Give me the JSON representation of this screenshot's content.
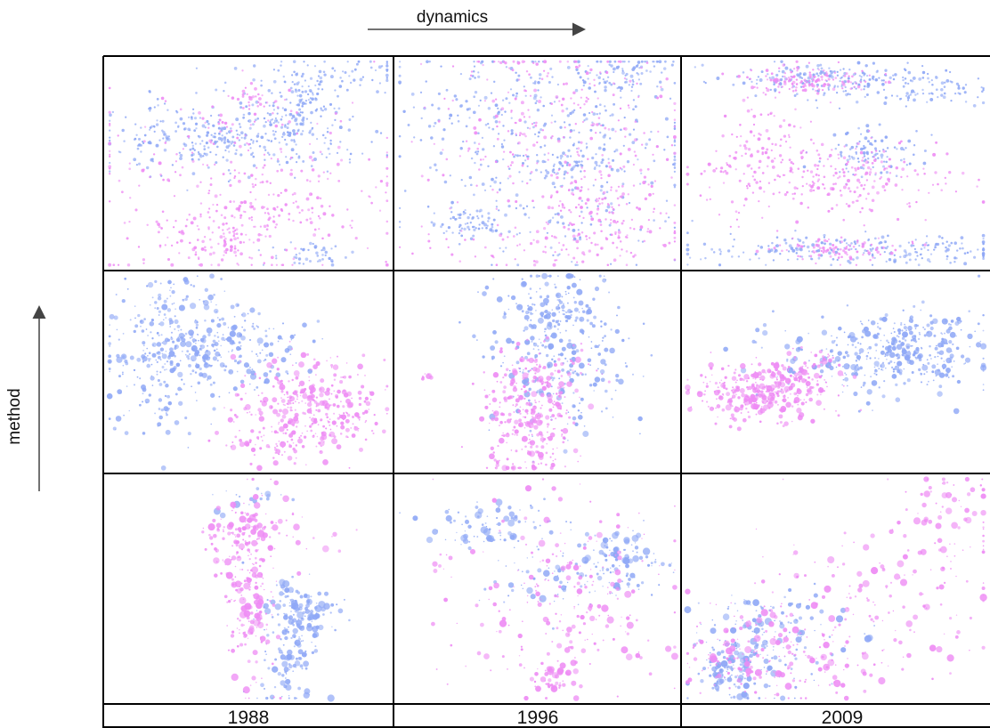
{
  "chart_data": {
    "type": "scatter",
    "title": "",
    "x_axis_label": "dynamics",
    "y_axis_label": "method",
    "columns": [
      "1988",
      "1996",
      "2009"
    ],
    "grid": "3x3 small multiples",
    "series_colors": {
      "blue": "#8fa8f6",
      "pink": "#ee8cf4"
    },
    "panels": [
      {
        "row": 1,
        "column": "1988",
        "clusters": [
          {
            "color": "blue",
            "cx": 0.42,
            "cy": 0.63,
            "sx": 0.22,
            "sy": 0.08,
            "n": 360
          },
          {
            "color": "blue",
            "cx": 0.68,
            "cy": 0.78,
            "sx": 0.06,
            "sy": 0.06,
            "n": 80
          },
          {
            "color": "blue",
            "cx": 0.75,
            "cy": 0.92,
            "sx": 0.18,
            "sy": 0.05,
            "n": 90
          },
          {
            "color": "blue",
            "cx": 0.72,
            "cy": 0.06,
            "sx": 0.07,
            "sy": 0.04,
            "n": 45
          },
          {
            "color": "pink",
            "cx": 0.5,
            "cy": 0.4,
            "sx": 0.28,
            "sy": 0.22,
            "n": 280
          },
          {
            "color": "pink",
            "cx": 0.35,
            "cy": 0.12,
            "sx": 0.12,
            "sy": 0.06,
            "n": 80
          },
          {
            "color": "pink",
            "cx": 0.58,
            "cy": 0.23,
            "sx": 0.12,
            "sy": 0.05,
            "n": 60
          },
          {
            "color": "pink",
            "cx": 0.52,
            "cy": 0.82,
            "sx": 0.05,
            "sy": 0.03,
            "n": 30
          }
        ]
      },
      {
        "row": 1,
        "column": "1996",
        "clusters": [
          {
            "color": "blue",
            "cx": 0.62,
            "cy": 0.55,
            "sx": 0.25,
            "sy": 0.28,
            "n": 320
          },
          {
            "color": "blue",
            "cx": 0.25,
            "cy": 0.22,
            "sx": 0.08,
            "sy": 0.04,
            "n": 70
          },
          {
            "color": "blue",
            "cx": 0.62,
            "cy": 0.5,
            "sx": 0.08,
            "sy": 0.03,
            "n": 60
          },
          {
            "color": "blue",
            "cx": 0.78,
            "cy": 0.92,
            "sx": 0.1,
            "sy": 0.06,
            "n": 80
          },
          {
            "color": "blue",
            "cx": 0.3,
            "cy": 0.7,
            "sx": 0.18,
            "sy": 0.18,
            "n": 120
          },
          {
            "color": "pink",
            "cx": 0.55,
            "cy": 0.68,
            "sx": 0.22,
            "sy": 0.22,
            "n": 260
          },
          {
            "color": "pink",
            "cx": 0.75,
            "cy": 0.3,
            "sx": 0.12,
            "sy": 0.1,
            "n": 120
          },
          {
            "color": "pink",
            "cx": 0.5,
            "cy": 0.1,
            "sx": 0.25,
            "sy": 0.06,
            "n": 100
          }
        ]
      },
      {
        "row": 1,
        "column": "2009",
        "clusters": [
          {
            "color": "blue",
            "cx": 0.5,
            "cy": 0.9,
            "sx": 0.18,
            "sy": 0.04,
            "n": 220
          },
          {
            "color": "blue",
            "cx": 0.62,
            "cy": 0.55,
            "sx": 0.08,
            "sy": 0.05,
            "n": 110
          },
          {
            "color": "blue",
            "cx": 0.58,
            "cy": 0.08,
            "sx": 0.28,
            "sy": 0.04,
            "n": 240
          },
          {
            "color": "blue",
            "cx": 0.8,
            "cy": 0.85,
            "sx": 0.12,
            "sy": 0.04,
            "n": 60
          },
          {
            "color": "pink",
            "cx": 0.42,
            "cy": 0.9,
            "sx": 0.1,
            "sy": 0.035,
            "n": 140
          },
          {
            "color": "pink",
            "cx": 0.45,
            "cy": 0.43,
            "sx": 0.2,
            "sy": 0.1,
            "n": 280
          },
          {
            "color": "pink",
            "cx": 0.52,
            "cy": 0.08,
            "sx": 0.1,
            "sy": 0.03,
            "n": 90
          },
          {
            "color": "pink",
            "cx": 0.25,
            "cy": 0.6,
            "sx": 0.08,
            "sy": 0.12,
            "n": 60
          }
        ]
      },
      {
        "row": 2,
        "column": "1988",
        "clusters": [
          {
            "color": "blue",
            "cx": 0.35,
            "cy": 0.62,
            "sx": 0.16,
            "sy": 0.1,
            "n": 330
          },
          {
            "color": "blue",
            "cx": 0.18,
            "cy": 0.42,
            "sx": 0.1,
            "sy": 0.14,
            "n": 80
          },
          {
            "color": "blue",
            "cx": 0.25,
            "cy": 0.85,
            "sx": 0.1,
            "sy": 0.08,
            "n": 60
          },
          {
            "color": "pink",
            "cx": 0.72,
            "cy": 0.32,
            "sx": 0.13,
            "sy": 0.12,
            "n": 330
          },
          {
            "color": "pink",
            "cx": 0.6,
            "cy": 0.14,
            "sx": 0.1,
            "sy": 0.06,
            "n": 60
          }
        ]
      },
      {
        "row": 2,
        "column": "1996",
        "clusters": [
          {
            "color": "blue",
            "cx": 0.58,
            "cy": 0.6,
            "sx": 0.12,
            "sy": 0.2,
            "n": 300
          },
          {
            "color": "blue",
            "cx": 0.55,
            "cy": 0.85,
            "sx": 0.06,
            "sy": 0.08,
            "n": 60
          },
          {
            "color": "pink",
            "cx": 0.46,
            "cy": 0.25,
            "sx": 0.08,
            "sy": 0.15,
            "n": 250
          },
          {
            "color": "pink",
            "cx": 0.55,
            "cy": 0.45,
            "sx": 0.08,
            "sy": 0.1,
            "n": 80
          },
          {
            "color": "pink",
            "cx": 0.12,
            "cy": 0.48,
            "sx": 0.02,
            "sy": 0.01,
            "n": 8
          }
        ]
      },
      {
        "row": 2,
        "column": "2009",
        "clusters": [
          {
            "color": "blue",
            "cx": 0.65,
            "cy": 0.58,
            "sx": 0.17,
            "sy": 0.1,
            "n": 330
          },
          {
            "color": "blue",
            "cx": 0.78,
            "cy": 0.68,
            "sx": 0.08,
            "sy": 0.06,
            "n": 80
          },
          {
            "color": "pink",
            "cx": 0.25,
            "cy": 0.4,
            "sx": 0.11,
            "sy": 0.07,
            "n": 330
          },
          {
            "color": "pink",
            "cx": 0.38,
            "cy": 0.5,
            "sx": 0.07,
            "sy": 0.06,
            "n": 70
          }
        ]
      },
      {
        "row": 3,
        "column": "1988",
        "clusters": [
          {
            "color": "blue",
            "cx": 0.65,
            "cy": 0.28,
            "sx": 0.05,
            "sy": 0.16,
            "n": 160
          },
          {
            "color": "blue",
            "cx": 0.72,
            "cy": 0.4,
            "sx": 0.05,
            "sy": 0.05,
            "n": 60
          },
          {
            "color": "blue",
            "cx": 0.5,
            "cy": 0.9,
            "sx": 0.06,
            "sy": 0.03,
            "n": 20
          },
          {
            "color": "pink",
            "cx": 0.5,
            "cy": 0.5,
            "sx": 0.05,
            "sy": 0.2,
            "n": 200
          },
          {
            "color": "pink",
            "cx": 0.45,
            "cy": 0.72,
            "sx": 0.06,
            "sy": 0.05,
            "n": 60
          },
          {
            "color": "pink",
            "cx": 0.62,
            "cy": 0.8,
            "sx": 0.12,
            "sy": 0.08,
            "n": 40
          }
        ]
      },
      {
        "row": 3,
        "column": "1996",
        "clusters": [
          {
            "color": "blue",
            "cx": 0.35,
            "cy": 0.78,
            "sx": 0.12,
            "sy": 0.05,
            "n": 90
          },
          {
            "color": "blue",
            "cx": 0.78,
            "cy": 0.62,
            "sx": 0.08,
            "sy": 0.08,
            "n": 110
          },
          {
            "color": "blue",
            "cx": 0.55,
            "cy": 0.55,
            "sx": 0.1,
            "sy": 0.08,
            "n": 60
          },
          {
            "color": "pink",
            "cx": 0.6,
            "cy": 0.45,
            "sx": 0.2,
            "sy": 0.22,
            "n": 220
          },
          {
            "color": "pink",
            "cx": 0.55,
            "cy": 0.1,
            "sx": 0.05,
            "sy": 0.05,
            "n": 40
          },
          {
            "color": "pink",
            "cx": 0.15,
            "cy": 0.62,
            "sx": 0.02,
            "sy": 0.02,
            "n": 6
          }
        ]
      },
      {
        "row": 3,
        "column": "2009",
        "clusters": [
          {
            "color": "blue",
            "cx": 0.18,
            "cy": 0.15,
            "sx": 0.08,
            "sy": 0.08,
            "n": 110
          },
          {
            "color": "blue",
            "cx": 0.3,
            "cy": 0.3,
            "sx": 0.12,
            "sy": 0.1,
            "n": 120
          },
          {
            "color": "blue",
            "cx": 0.12,
            "cy": 0.12,
            "sx": 0.03,
            "sy": 0.03,
            "n": 30
          },
          {
            "color": "pink",
            "cx": 0.28,
            "cy": 0.2,
            "sx": 0.15,
            "sy": 0.1,
            "n": 180
          },
          {
            "color": "pink",
            "cx": 0.6,
            "cy": 0.45,
            "sx": 0.22,
            "sy": 0.2,
            "n": 160
          },
          {
            "color": "pink",
            "cx": 0.88,
            "cy": 0.8,
            "sx": 0.08,
            "sy": 0.12,
            "n": 60
          }
        ]
      }
    ]
  }
}
